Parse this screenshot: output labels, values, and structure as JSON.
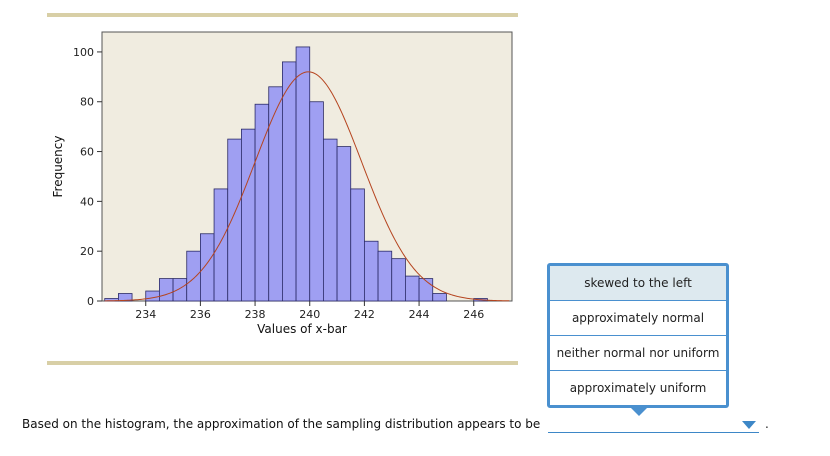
{
  "chart_data": {
    "type": "bar",
    "title": "",
    "xlabel": "Values of x-bar",
    "ylabel": "Frequency",
    "xlim": [
      232.4,
      247.4
    ],
    "ylim": [
      0,
      108
    ],
    "bin_width": 0.5,
    "bins_start": 232.5,
    "values": [
      1,
      3,
      0,
      4,
      9,
      9,
      20,
      27,
      45,
      65,
      69,
      79,
      86,
      96,
      102,
      80,
      65,
      62,
      45,
      24,
      20,
      17,
      10,
      9,
      3,
      0,
      0,
      1
    ],
    "xticks": [
      234,
      236,
      238,
      240,
      242,
      244,
      246
    ],
    "yticks": [
      0,
      20,
      40,
      60,
      80,
      100
    ],
    "normal_curve": {
      "mean": 239.95,
      "sd": 1.95,
      "peak": 92
    },
    "grid": false,
    "colors": {
      "bar_fill": "#9f9ff2",
      "bar_stroke": "#2a2a66",
      "curve": "#b5441f",
      "plot_bg": "#f0ece0"
    }
  },
  "question": {
    "text": "Based on the histogram, the approximation of the sampling distribution appears to be",
    "period": "."
  },
  "dropdown": {
    "options": [
      "skewed to the left",
      "approximately normal",
      "neither normal nor uniform",
      "approximately uniform"
    ]
  },
  "icons": {
    "select_arrow": "chevron-down-icon"
  }
}
